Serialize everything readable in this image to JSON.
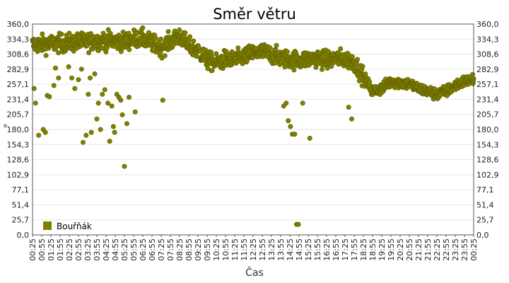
{
  "chart_data": {
    "type": "scatter",
    "title": "Směr větru",
    "xlabel": "Čas",
    "ylabel": "°",
    "ylim": [
      0,
      360
    ],
    "y_ticks": [
      "0,0",
      "25,7",
      "51,4",
      "77,1",
      "102,9",
      "128,6",
      "154,3",
      "180,0",
      "205,7",
      "231,4",
      "257,1",
      "282,9",
      "308,6",
      "334,3",
      "360,0"
    ],
    "x_ticks": [
      "00:25",
      "00:55",
      "01:25",
      "01:55",
      "02:25",
      "02:55",
      "03:25",
      "03:55",
      "04:25",
      "04:55",
      "05:25",
      "05:55",
      "06:25",
      "06:55",
      "07:25",
      "07:55",
      "08:25",
      "08:55",
      "09:25",
      "09:55",
      "10:25",
      "10:55",
      "11:25",
      "11:55",
      "12:25",
      "12:55",
      "13:25",
      "13:55",
      "14:25",
      "14:55",
      "15:25",
      "15:55",
      "16:25",
      "16:55",
      "17:25",
      "17:55",
      "18:25",
      "18:55",
      "19:25",
      "19:55",
      "20:25",
      "20:55",
      "21:25",
      "21:55",
      "22:25",
      "22:55",
      "23:25",
      "23:55",
      "00:25"
    ],
    "x_range": [
      "00:25",
      "00:25 (+1 day)"
    ],
    "grid": true,
    "legend_position": "bottom-left",
    "series": [
      {
        "name": "Bouřňák",
        "color": "#7f7f00",
        "baseline": [
          [
            0,
            325
          ],
          [
            120,
            328
          ],
          [
            240,
            332
          ],
          [
            300,
            330
          ],
          [
            330,
            335
          ],
          [
            360,
            335
          ],
          [
            420,
            320
          ],
          [
            480,
            340
          ],
          [
            510,
            322
          ],
          [
            540,
            315
          ],
          [
            570,
            298
          ],
          [
            600,
            293
          ],
          [
            630,
            300
          ],
          [
            660,
            298
          ],
          [
            690,
            305
          ],
          [
            720,
            310
          ],
          [
            750,
            312
          ],
          [
            780,
            308
          ],
          [
            810,
            302
          ],
          [
            840,
            300
          ],
          [
            870,
            298
          ],
          [
            900,
            300
          ],
          [
            930,
            302
          ],
          [
            960,
            298
          ],
          [
            990,
            302
          ],
          [
            1020,
            300
          ],
          [
            1050,
            295
          ],
          [
            1080,
            270
          ],
          [
            1110,
            245
          ],
          [
            1140,
            250
          ],
          [
            1170,
            262
          ],
          [
            1200,
            260
          ],
          [
            1230,
            258
          ],
          [
            1260,
            250
          ],
          [
            1290,
            245
          ],
          [
            1320,
            240
          ],
          [
            1350,
            245
          ],
          [
            1380,
            255
          ],
          [
            1410,
            262
          ],
          [
            1440,
            265
          ]
        ],
        "outliers": [
          [
            5,
            250
          ],
          [
            10,
            225
          ],
          [
            20,
            170
          ],
          [
            35,
            180
          ],
          [
            42,
            175
          ],
          [
            48,
            238
          ],
          [
            55,
            236
          ],
          [
            70,
            255
          ],
          [
            75,
            285
          ],
          [
            85,
            268
          ],
          [
            118,
            287
          ],
          [
            128,
            268
          ],
          [
            138,
            250
          ],
          [
            150,
            265
          ],
          [
            160,
            283
          ],
          [
            165,
            158
          ],
          [
            175,
            170
          ],
          [
            182,
            240
          ],
          [
            188,
            268
          ],
          [
            192,
            175
          ],
          [
            203,
            275
          ],
          [
            210,
            198
          ],
          [
            215,
            225
          ],
          [
            222,
            180
          ],
          [
            228,
            240
          ],
          [
            236,
            248
          ],
          [
            246,
            225
          ],
          [
            252,
            160
          ],
          [
            259,
            220
          ],
          [
            264,
            185
          ],
          [
            268,
            175
          ],
          [
            275,
            240
          ],
          [
            282,
            235
          ],
          [
            288,
            230
          ],
          [
            293,
            205
          ],
          [
            300,
            117
          ],
          [
            308,
            190
          ],
          [
            315,
            235
          ],
          [
            335,
            210
          ],
          [
            425,
            230
          ],
          [
            820,
            220
          ],
          [
            828,
            225
          ],
          [
            835,
            195
          ],
          [
            842,
            185
          ],
          [
            848,
            172
          ],
          [
            856,
            172
          ],
          [
            862,
            18
          ],
          [
            868,
            18
          ],
          [
            882,
            225
          ],
          [
            905,
            165
          ],
          [
            1032,
            218
          ],
          [
            1042,
            198
          ]
        ]
      }
    ]
  }
}
